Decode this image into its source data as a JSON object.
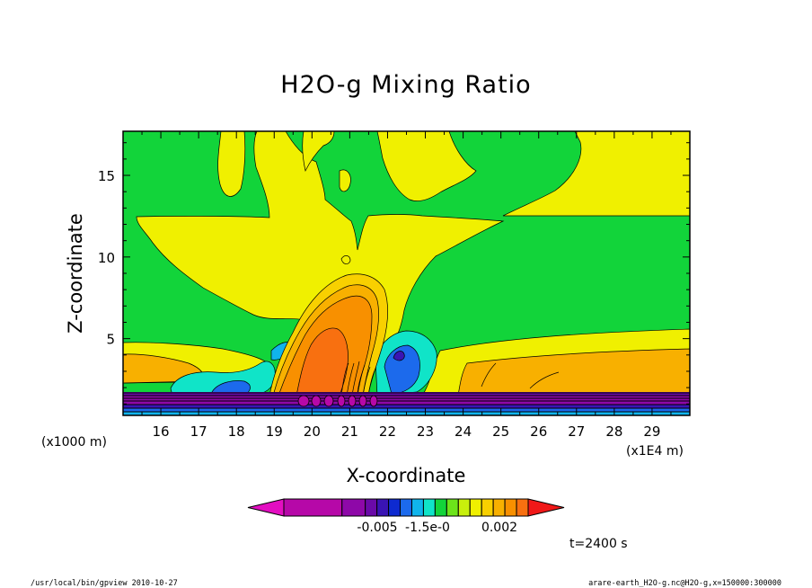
{
  "chart_data": {
    "type": "contour",
    "title": "H2O-g Mixing Ratio",
    "xlabel": "X-coordinate",
    "ylabel": "Z-coordinate",
    "x_unit_label": "(x1000 m)",
    "x_secondary_unit_label": "(x1E4 m)",
    "xlim": [
      15.0,
      30.0
    ],
    "ylim": [
      0.3,
      17.7
    ],
    "x_ticks": [
      16,
      17,
      18,
      19,
      20,
      21,
      22,
      23,
      24,
      25,
      26,
      27,
      28,
      29
    ],
    "y_ticks": [
      5,
      10,
      15
    ],
    "colorbar_labels": [
      "-0.005",
      "-1.5e-0",
      "0.002"
    ],
    "colorbar_colors": [
      "#e30ec1",
      "#b608a8",
      "#8e08a8",
      "#6a0aa8",
      "#3a14b4",
      "#0e2ad0",
      "#1c6aec",
      "#10b4ec",
      "#10e4c8",
      "#12d43a",
      "#6ce41a",
      "#c8f00c",
      "#f0f000",
      "#f8d000",
      "#f8b000",
      "#f89000",
      "#f87010",
      "#f01818"
    ],
    "time_label": "t=2400 s",
    "footer_left": "/usr/local/bin/gpview   2010-10-27",
    "footer_right": "arare-earth_H2O-g.nc@H2O-g,x=150000:300000"
  }
}
